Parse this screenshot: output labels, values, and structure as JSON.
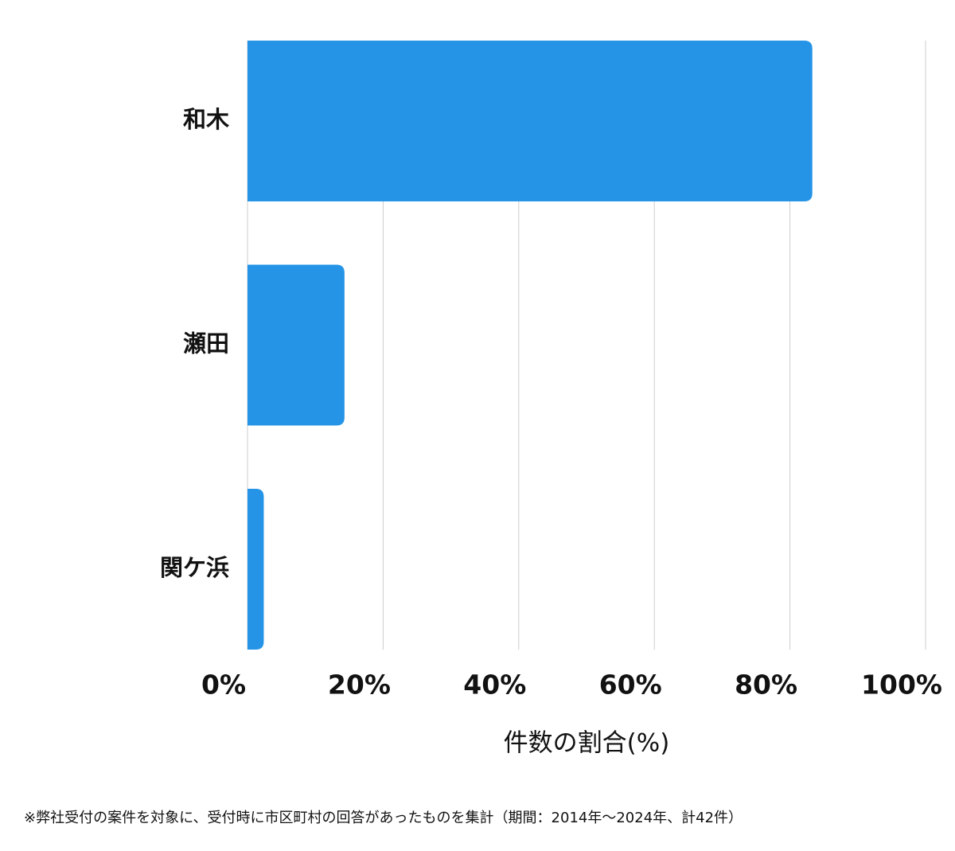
{
  "chart_data": {
    "type": "bar",
    "orientation": "horizontal",
    "categories": [
      "和木",
      "瀬田",
      "関ケ浜"
    ],
    "values": [
      83.3,
      14.3,
      2.4
    ],
    "color": "#2594e6",
    "xlabel": "件数の割合(%)",
    "xlim": [
      0,
      100
    ],
    "xticks": [
      {
        "value": 0,
        "label": "0%"
      },
      {
        "value": 20,
        "label": "20%"
      },
      {
        "value": 40,
        "label": "40%"
      },
      {
        "value": 60,
        "label": "60%"
      },
      {
        "value": 80,
        "label": "80%"
      },
      {
        "value": 100,
        "label": "100%"
      }
    ],
    "grid": true
  },
  "footnote": "※弊社受付の案件を対象に、受付時に市区町村の回答があったものを集計（期間：2014年～2024年、計42件）"
}
